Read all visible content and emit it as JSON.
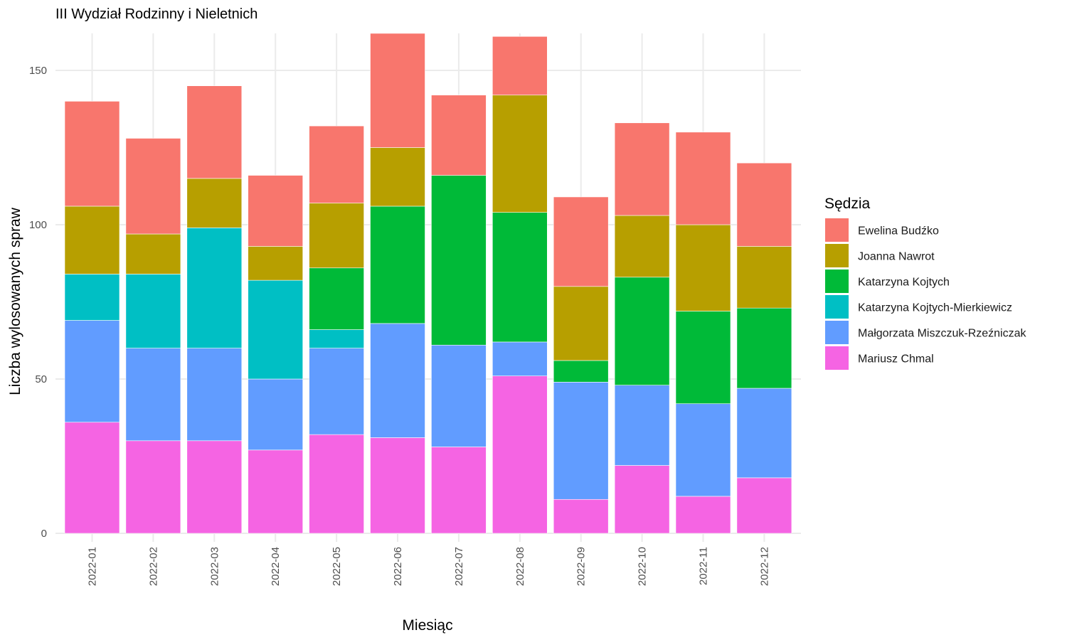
{
  "chart_data": {
    "type": "bar",
    "stacked": true,
    "title": "III Wydział Rodzinny i Nieletnich",
    "xlabel": "Miesiąc",
    "ylabel": "Liczba wylosowanych spraw",
    "ylim": [
      0,
      162
    ],
    "yticks": [
      0,
      50,
      100,
      150
    ],
    "grid": true,
    "legend_title": "Sędzia",
    "legend_position": "right",
    "categories": [
      "2022-01",
      "2022-02",
      "2022-03",
      "2022-04",
      "2022-05",
      "2022-06",
      "2022-07",
      "2022-08",
      "2022-09",
      "2022-10",
      "2022-11",
      "2022-12"
    ],
    "series": [
      {
        "name": "Mariusz Chmal",
        "color": "#F564E3",
        "values": [
          36,
          30,
          30,
          27,
          32,
          31,
          28,
          51,
          11,
          22,
          12,
          18
        ]
      },
      {
        "name": "Małgorzata Miszczuk-Rzeźniczak",
        "color": "#619CFF",
        "values": [
          33,
          30,
          30,
          23,
          28,
          37,
          33,
          11,
          38,
          26,
          30,
          29
        ]
      },
      {
        "name": "Katarzyna Kojtych-Mierkiewicz",
        "color": "#00BFC4",
        "values": [
          15,
          24,
          39,
          32,
          6,
          0,
          0,
          0,
          0,
          0,
          0,
          0
        ]
      },
      {
        "name": "Katarzyna Kojtych",
        "color": "#00BA38",
        "values": [
          0,
          0,
          0,
          0,
          20,
          38,
          55,
          42,
          7,
          35,
          30,
          26
        ]
      },
      {
        "name": "Joanna Nawrot",
        "color": "#B79F00",
        "values": [
          22,
          13,
          16,
          11,
          21,
          19,
          0,
          38,
          24,
          20,
          28,
          20
        ]
      },
      {
        "name": "Ewelina Budźko",
        "color": "#F8766D",
        "values": [
          34,
          31,
          30,
          23,
          25,
          37,
          26,
          19,
          29,
          30,
          30,
          27
        ]
      }
    ],
    "legend_order": [
      "Ewelina Budźko",
      "Joanna Nawrot",
      "Katarzyna Kojtych",
      "Katarzyna Kojtych-Mierkiewicz",
      "Małgorzata Miszczuk-Rzeźniczak",
      "Mariusz Chmal"
    ]
  }
}
